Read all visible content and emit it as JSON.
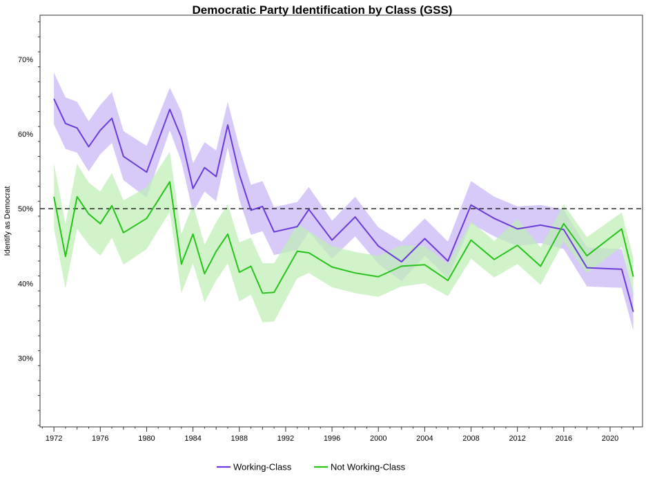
{
  "chart_data": {
    "type": "line",
    "title": "Democratic Party Identification by Class (GSS)",
    "xlabel": "",
    "ylabel": "Identify as Democrat",
    "xlim": [
      1970.8,
      2022.8
    ],
    "ylim": [
      20.8,
      75.9
    ],
    "x_ticks": [
      1972,
      1976,
      1980,
      1984,
      1988,
      1992,
      1996,
      2000,
      2004,
      2008,
      2012,
      2016,
      2020
    ],
    "y_ticks": [
      {
        "value": 30,
        "label": "30%"
      },
      {
        "value": 40,
        "label": "40%"
      },
      {
        "value": 50,
        "label": "50%"
      },
      {
        "value": 60,
        "label": "60%"
      },
      {
        "value": 70,
        "label": "70%"
      }
    ],
    "reference_line": 50,
    "grid": false,
    "legend_position": "bottom",
    "series": [
      {
        "name": "Working-Class",
        "color": "#6a3bd8",
        "band_color": "#c8b6f6",
        "x": [
          1972,
          1973,
          1974,
          1975,
          1976,
          1977,
          1978,
          1980,
          1982,
          1983,
          1984,
          1985,
          1986,
          1987,
          1988,
          1989,
          1990,
          1991,
          1993,
          1994,
          1996,
          1998,
          2000,
          2002,
          2004,
          2006,
          2008,
          2010,
          2012,
          2014,
          2016,
          2018,
          2021,
          2022
        ],
        "y": [
          64.7,
          61.4,
          60.8,
          58.3,
          60.5,
          62.1,
          57.0,
          54.9,
          63.3,
          59.5,
          52.7,
          55.5,
          54.3,
          61.2,
          54.6,
          49.8,
          50.3,
          46.9,
          47.6,
          49.9,
          45.8,
          48.9,
          45.0,
          42.9,
          46.0,
          43.0,
          50.5,
          48.7,
          47.3,
          47.8,
          47.2,
          42.1,
          41.9,
          36.2
        ],
        "lower": [
          61.3,
          58.0,
          57.5,
          55.0,
          57.3,
          58.8,
          53.8,
          51.5,
          60.5,
          56.3,
          49.5,
          52.3,
          51.0,
          58.2,
          51.2,
          46.5,
          47.0,
          43.8,
          44.5,
          46.9,
          43.3,
          46.3,
          42.6,
          40.3,
          43.7,
          40.7,
          48.0,
          46.3,
          45.0,
          45.4,
          44.6,
          39.6,
          39.4,
          33.7
        ],
        "upper": [
          68.2,
          64.9,
          64.3,
          61.7,
          63.9,
          65.6,
          60.4,
          58.4,
          66.2,
          63.0,
          56.1,
          58.9,
          57.8,
          64.3,
          58.2,
          53.2,
          53.7,
          50.2,
          50.9,
          52.9,
          48.4,
          51.6,
          47.5,
          45.6,
          48.7,
          45.6,
          53.7,
          51.6,
          50.3,
          50.5,
          49.9,
          44.8,
          44.6,
          38.9
        ]
      },
      {
        "name": "Not Working-Class",
        "color": "#27c21a",
        "band_color": "#bfeeb5",
        "x": [
          1972,
          1973,
          1974,
          1975,
          1976,
          1977,
          1978,
          1980,
          1982,
          1983,
          1984,
          1985,
          1986,
          1987,
          1988,
          1989,
          1990,
          1991,
          1993,
          1994,
          1996,
          1998,
          2000,
          2002,
          2004,
          2006,
          2008,
          2010,
          2012,
          2014,
          2016,
          2018,
          2021,
          2022
        ],
        "y": [
          51.6,
          43.6,
          51.6,
          49.3,
          48.0,
          50.4,
          46.8,
          48.7,
          53.6,
          42.6,
          46.6,
          41.3,
          44.3,
          46.6,
          41.5,
          42.3,
          38.7,
          38.8,
          44.3,
          44.1,
          42.2,
          41.4,
          40.9,
          42.3,
          42.5,
          40.4,
          45.8,
          43.2,
          45.1,
          42.3,
          48.0,
          43.7,
          47.3,
          40.9
        ],
        "lower": [
          47.4,
          39.3,
          47.3,
          45.2,
          43.7,
          46.1,
          42.5,
          44.6,
          49.6,
          38.7,
          42.7,
          37.5,
          40.4,
          42.7,
          37.6,
          38.5,
          34.8,
          34.9,
          40.7,
          41.4,
          39.5,
          38.7,
          38.2,
          39.6,
          40.0,
          38.3,
          43.3,
          40.8,
          42.6,
          39.8,
          45.6,
          41.4,
          44.9,
          38.3
        ],
        "upper": [
          56.1,
          48.0,
          56.0,
          53.5,
          52.3,
          54.8,
          51.1,
          52.9,
          57.6,
          46.6,
          50.6,
          45.2,
          48.2,
          50.6,
          45.5,
          46.1,
          42.7,
          42.7,
          47.9,
          47.0,
          45.0,
          44.2,
          43.7,
          45.1,
          45.0,
          42.6,
          48.3,
          45.7,
          48.6,
          44.8,
          50.6,
          46.2,
          49.5,
          43.5
        ]
      }
    ]
  }
}
